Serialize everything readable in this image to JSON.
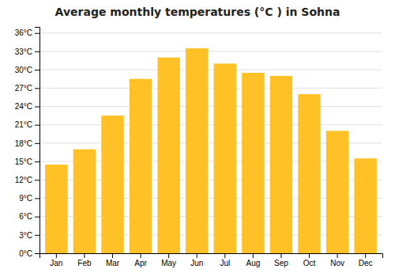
{
  "chart_data": {
    "type": "bar",
    "title": "Average monthly temperatures (°C ) in Sohna",
    "categories": [
      "Jan",
      "Feb",
      "Mar",
      "Apr",
      "May",
      "Jun",
      "Jul",
      "Aug",
      "Sep",
      "Oct",
      "Nov",
      "Dec"
    ],
    "values": [
      14.5,
      17.0,
      22.5,
      28.5,
      32.0,
      33.5,
      31.0,
      29.5,
      29.0,
      26.0,
      20.0,
      15.5
    ],
    "color": "#FFC125",
    "ylim": [
      0,
      37
    ],
    "yticks": [
      {
        "value": 0,
        "label": "0°C"
      },
      {
        "value": 3,
        "label": "3°C"
      },
      {
        "value": 6,
        "label": "6°C"
      },
      {
        "value": 9,
        "label": "9°C"
      },
      {
        "value": 12,
        "label": "12°C"
      },
      {
        "value": 15,
        "label": "15°C"
      },
      {
        "value": 18,
        "label": "18°C"
      },
      {
        "value": 21,
        "label": "21°C"
      },
      {
        "value": 24,
        "label": "24°C"
      },
      {
        "value": 27,
        "label": "27°C"
      },
      {
        "value": 30,
        "label": "30°C"
      },
      {
        "value": 33,
        "label": "33°C"
      },
      {
        "value": 36,
        "label": "36°C"
      }
    ],
    "grid": true
  }
}
